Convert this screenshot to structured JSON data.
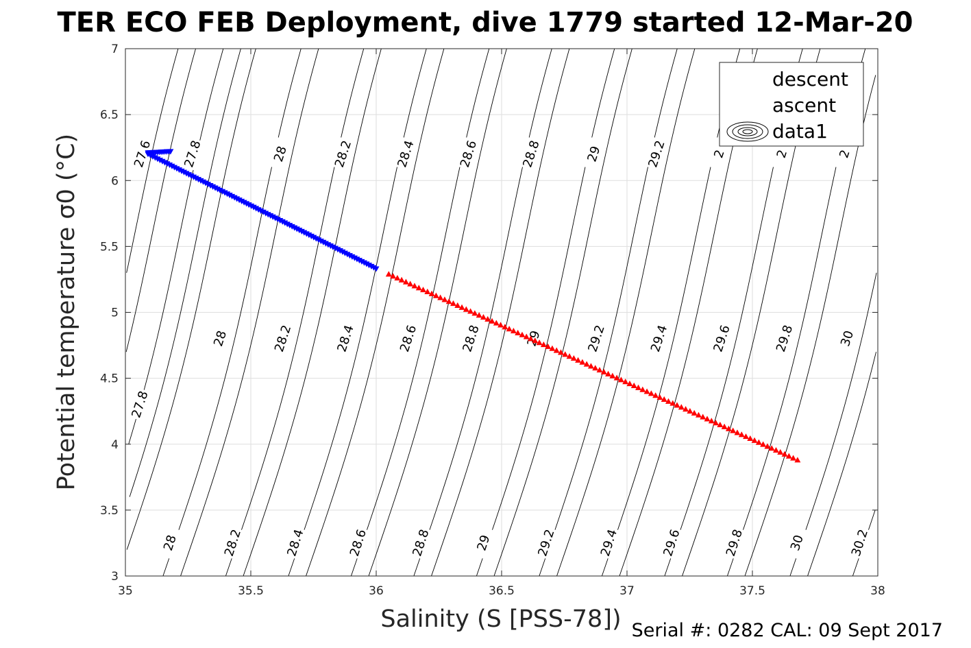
{
  "chart_data": {
    "type": "scatter",
    "title": "TER ECO FEB Deployment, dive 1779 started 12-Mar-20",
    "xlabel": "Salinity (S [PSS-78])",
    "ylabel": "Potential temperature σ0 (°C)",
    "xlim": [
      35,
      38
    ],
    "ylim": [
      3,
      7
    ],
    "xticks": [
      "35",
      "35.5",
      "36",
      "36.5",
      "37",
      "37.5",
      "38"
    ],
    "yticks": [
      "3",
      "3.5",
      "4",
      "4.5",
      "5",
      "5.5",
      "6",
      "6.5",
      "7"
    ],
    "grid": true,
    "legend_position": "top-right",
    "legend": [
      {
        "name": "descent",
        "color": "#0000ff",
        "marker": "triangle-down"
      },
      {
        "name": "ascent",
        "color": "#ff0000",
        "marker": "triangle-up"
      },
      {
        "name": "data1",
        "marker": "contour"
      }
    ],
    "series": [
      {
        "name": "descent",
        "color": "#0000ff",
        "marker": "triangle-down",
        "start": [
          35.09,
          6.2
        ],
        "end": [
          36.0,
          5.33
        ],
        "hook": [
          [
            35.09,
            6.21
          ],
          [
            35.18,
            6.22
          ]
        ]
      },
      {
        "name": "ascent",
        "color": "#ff0000",
        "marker": "triangle-up",
        "start": [
          36.05,
          5.29
        ],
        "end": [
          37.68,
          3.88
        ]
      }
    ],
    "contours": {
      "label_color": "#000000",
      "label_rows": [
        {
          "y": 6.2,
          "levels": [
            "27.6",
            "27.8",
            "28",
            "28.2",
            "28.4",
            "28.6",
            "28.8",
            "29",
            "29.2",
            "2",
            "2",
            "2"
          ],
          "x": [
            35.07,
            35.27,
            35.62,
            35.87,
            36.12,
            36.37,
            36.62,
            36.87,
            37.12,
            37.37,
            37.62,
            37.87
          ]
        },
        {
          "y": 4.8,
          "levels": [
            "28",
            "28.2",
            "28.4",
            "28.6",
            "28.8",
            "29",
            "29.2",
            "29.4",
            "29.6",
            "29.8",
            "30"
          ],
          "x": [
            35.38,
            35.63,
            35.88,
            36.13,
            36.38,
            36.63,
            36.88,
            37.13,
            37.38,
            37.63,
            37.88
          ]
        },
        {
          "y": 4.3,
          "levels": [
            "27.8"
          ],
          "x": [
            35.06
          ]
        },
        {
          "y": 3.25,
          "levels": [
            "28",
            "28.2",
            "28.4",
            "28.6",
            "28.8",
            "29",
            "29.2",
            "29.4",
            "29.6",
            "29.8",
            "30",
            "30.2"
          ],
          "x": [
            35.18,
            35.43,
            35.68,
            35.93,
            36.18,
            36.43,
            36.68,
            36.93,
            37.18,
            37.43,
            37.68,
            37.93
          ]
        }
      ]
    },
    "footer": "Serial #: 0282  CAL: 09 Sept 2017"
  }
}
